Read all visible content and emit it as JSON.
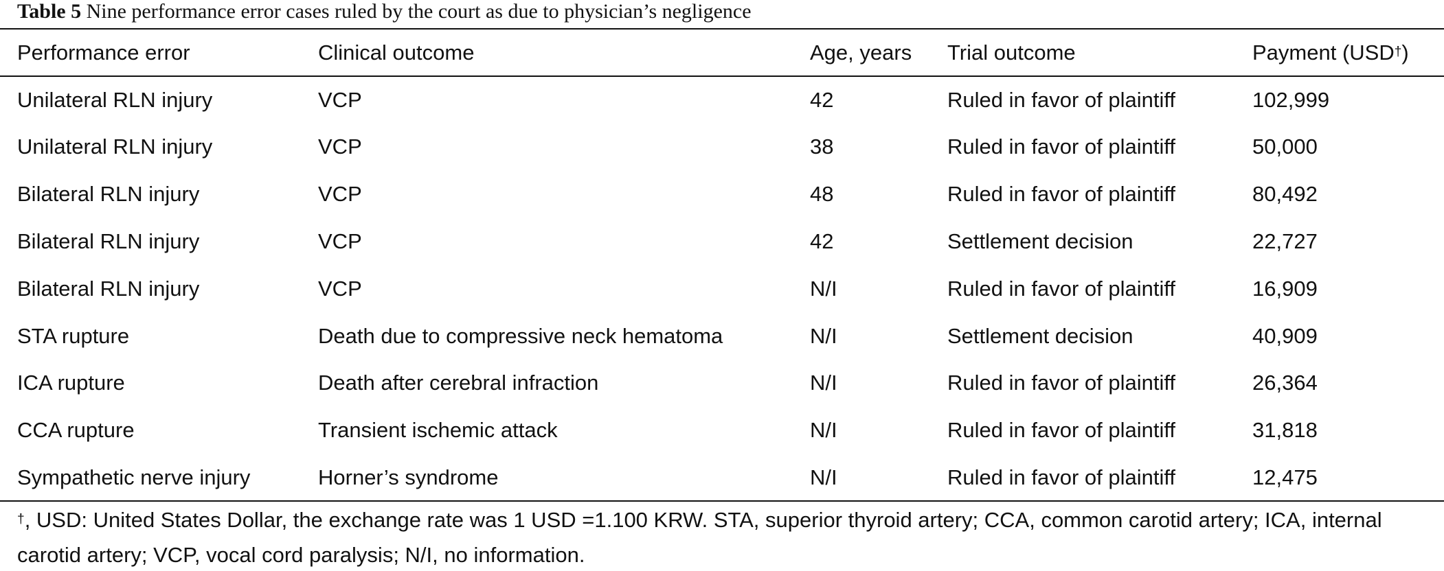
{
  "caption": {
    "label": "Table 5",
    "text": "Nine performance error cases ruled by the court as due to physician’s negligence"
  },
  "columns": [
    "Performance error",
    "Clinical outcome",
    "Age, years",
    "Trial outcome",
    "Payment (USD"
  ],
  "payment_header_mark": "†",
  "payment_header_close": ")",
  "rows": [
    [
      "Unilateral RLN injury",
      "VCP",
      "42",
      "Ruled in favor of plaintiff",
      "102,999"
    ],
    [
      "Unilateral RLN injury",
      "VCP",
      "38",
      "Ruled in favor of plaintiff",
      "50,000"
    ],
    [
      "Bilateral RLN injury",
      "VCP",
      "48",
      "Ruled in favor of plaintiff",
      "80,492"
    ],
    [
      "Bilateral RLN injury",
      "VCP",
      "42",
      "Settlement decision",
      "22,727"
    ],
    [
      "Bilateral RLN injury",
      "VCP",
      "N/I",
      "Ruled in favor of plaintiff",
      "16,909"
    ],
    [
      "STA rupture",
      "Death due to compressive neck hematoma",
      "N/I",
      "Settlement decision",
      "40,909"
    ],
    [
      "ICA rupture",
      "Death after cerebral infraction",
      "N/I",
      "Ruled in favor of plaintiff",
      "26,364"
    ],
    [
      "CCA rupture",
      "Transient ischemic attack",
      "N/I",
      "Ruled in favor of plaintiff",
      "31,818"
    ],
    [
      "Sympathetic nerve injury",
      "Horner’s syndrome",
      "N/I",
      "Ruled in favor of plaintiff",
      "12,475"
    ]
  ],
  "footnote": {
    "mark": "†",
    "text": ", USD: United States Dollar, the exchange rate was 1 USD =1.100 KRW. STA, superior thyroid artery; CCA, common carotid artery; ICA, internal carotid artery; VCP, vocal cord paralysis; N/I, no information."
  }
}
